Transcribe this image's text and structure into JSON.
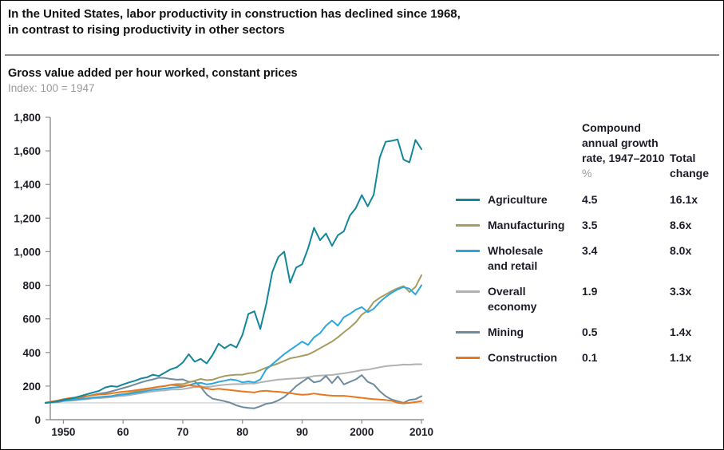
{
  "header": {
    "title_line1": "In the United States, labor productivity in construction has declined since 1968,",
    "title_line2": "in contrast to rising productivity in other sectors"
  },
  "chart": {
    "subtitle": "Gross value added per hour worked, constant prices",
    "index_note": "Index: 100 = 1947"
  },
  "legend": {
    "col_cagr_header": "Compound annual growth rate, 1947–2010",
    "col_cagr_unit": "%",
    "col_total_header": "Total change"
  },
  "chart_data": {
    "type": "line",
    "title": "Gross value added per hour worked, constant prices",
    "subtitle": "Index: 100 = 1947",
    "xlabel": "",
    "ylabel": "",
    "xlim": [
      1947,
      2010
    ],
    "ylim": [
      0,
      1800
    ],
    "grid": false,
    "legend_position": "right",
    "reference_line": 100,
    "x_start": 1947,
    "y_ticks": [
      0,
      200,
      400,
      600,
      800,
      1000,
      1200,
      1400,
      1600,
      1800
    ],
    "x_ticks": [
      {
        "v": 1950,
        "label": "1950"
      },
      {
        "v": 1960,
        "label": "60"
      },
      {
        "v": 1970,
        "label": "70"
      },
      {
        "v": 1980,
        "label": "80"
      },
      {
        "v": 1990,
        "label": "90"
      },
      {
        "v": 2000,
        "label": "2000"
      },
      {
        "v": 2010,
        "label": "2010"
      }
    ],
    "series": [
      {
        "name": "Agriculture",
        "label_lines": [
          "Agriculture"
        ],
        "color": "#13869a",
        "cagr": "4.5",
        "total_change": "16.1x",
        "values": [
          100,
          104,
          110,
          118,
          124,
          132,
          142,
          152,
          162,
          172,
          192,
          200,
          196,
          210,
          222,
          232,
          245,
          252,
          268,
          260,
          280,
          300,
          312,
          340,
          390,
          345,
          362,
          335,
          385,
          452,
          425,
          448,
          430,
          505,
          630,
          645,
          540,
          690,
          878,
          968,
          1000,
          815,
          905,
          925,
          1020,
          1142,
          1068,
          1108,
          1035,
          1098,
          1122,
          1215,
          1260,
          1337,
          1270,
          1340,
          1560,
          1654,
          1660,
          1668,
          1548,
          1532,
          1665,
          1610
        ]
      },
      {
        "name": "Manufacturing",
        "label_lines": [
          "Manufacturing"
        ],
        "color": "#a69c60",
        "cagr": "3.5",
        "total_change": "8.6x",
        "values": [
          100,
          103,
          106,
          112,
          115,
          118,
          122,
          126,
          132,
          134,
          138,
          140,
          148,
          152,
          158,
          166,
          174,
          182,
          190,
          196,
          200,
          208,
          212,
          212,
          222,
          232,
          242,
          235,
          238,
          250,
          260,
          265,
          268,
          268,
          276,
          280,
          295,
          310,
          322,
          335,
          350,
          365,
          372,
          380,
          388,
          405,
          425,
          445,
          465,
          490,
          520,
          548,
          580,
          625,
          650,
          700,
          725,
          745,
          765,
          782,
          795,
          760,
          790,
          860
        ]
      },
      {
        "name": "Wholesale and retail",
        "label_lines": [
          "Wholesale",
          "and retail"
        ],
        "color": "#2ca6df",
        "cagr": "3.4",
        "total_change": "8.0x",
        "values": [
          100,
          104,
          108,
          114,
          116,
          120,
          124,
          127,
          132,
          135,
          137,
          140,
          146,
          150,
          154,
          160,
          165,
          172,
          178,
          182,
          185,
          190,
          193,
          196,
          205,
          215,
          220,
          210,
          215,
          225,
          232,
          240,
          235,
          222,
          228,
          222,
          240,
          300,
          330,
          360,
          390,
          415,
          440,
          465,
          445,
          490,
          515,
          560,
          590,
          560,
          610,
          630,
          655,
          670,
          640,
          660,
          700,
          730,
          755,
          775,
          790,
          780,
          745,
          800
        ]
      },
      {
        "name": "Overall economy",
        "label_lines": [
          "Overall",
          "economy"
        ],
        "color": "#b1b1b1",
        "cagr": "1.9",
        "total_change": "3.3x",
        "values": [
          100,
          102,
          104,
          110,
          113,
          116,
          120,
          122,
          127,
          128,
          131,
          134,
          139,
          142,
          146,
          152,
          157,
          163,
          168,
          172,
          175,
          179,
          180,
          182,
          188,
          194,
          198,
          194,
          198,
          204,
          208,
          211,
          212,
          212,
          216,
          215,
          222,
          228,
          233,
          239,
          241,
          244,
          246,
          249,
          252,
          260,
          262,
          264,
          266,
          271,
          276,
          282,
          288,
          295,
          298,
          305,
          312,
          318,
          322,
          324,
          328,
          327,
          330,
          330
        ]
      },
      {
        "name": "Mining",
        "label_lines": [
          "Mining"
        ],
        "color": "#6e8b9e",
        "cagr": "0.5",
        "total_change": "1.4x",
        "values": [
          100,
          102,
          105,
          112,
          118,
          124,
          132,
          140,
          148,
          155,
          160,
          168,
          178,
          188,
          198,
          210,
          222,
          232,
          240,
          250,
          248,
          242,
          238,
          240,
          225,
          228,
          195,
          150,
          125,
          118,
          110,
          100,
          85,
          75,
          70,
          68,
          80,
          95,
          100,
          115,
          135,
          165,
          200,
          225,
          250,
          222,
          230,
          260,
          218,
          258,
          210,
          225,
          240,
          265,
          225,
          210,
          170,
          140,
          120,
          110,
          100,
          118,
          122,
          140
        ]
      },
      {
        "name": "Construction",
        "label_lines": [
          "Construction"
        ],
        "color": "#e8781f",
        "cagr": "0.1",
        "total_change": "1.1x",
        "values": [
          100,
          108,
          114,
          122,
          128,
          132,
          136,
          140,
          146,
          150,
          152,
          156,
          162,
          166,
          170,
          175,
          180,
          185,
          190,
          196,
          200,
          207,
          204,
          200,
          205,
          200,
          195,
          185,
          180,
          184,
          180,
          176,
          172,
          168,
          165,
          162,
          170,
          172,
          168,
          166,
          162,
          158,
          152,
          148,
          150,
          156,
          150,
          146,
          143,
          142,
          142,
          138,
          134,
          130,
          126,
          122,
          120,
          117,
          113,
          100,
          97,
          100,
          105,
          110
        ]
      }
    ]
  }
}
